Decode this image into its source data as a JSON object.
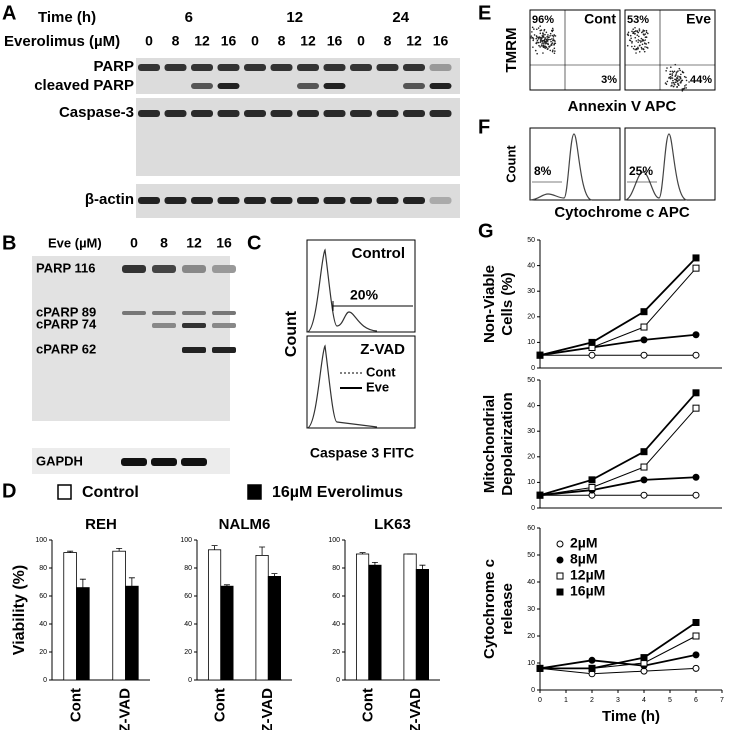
{
  "panels": [
    "A",
    "B",
    "C",
    "D",
    "E",
    "F",
    "G"
  ],
  "blot_a": {
    "time_label": "Time (h)",
    "drug_label": "Everolimus (µM)",
    "times": [
      "6",
      "12",
      "24"
    ],
    "doses": [
      "0",
      "8",
      "12",
      "16",
      "0",
      "8",
      "12",
      "16",
      "0",
      "8",
      "12",
      "16"
    ],
    "bands": [
      "PARP",
      "cleaved PARP",
      "Caspase-3",
      "β-actin"
    ]
  },
  "blot_b": {
    "dose_label": "Eve (µM)",
    "doses": [
      "0",
      "8",
      "12",
      "16"
    ],
    "bands": [
      "PARP 116",
      "cPARP 89",
      "cPARP 74",
      "cPARP 62"
    ],
    "loading": "GAPDH"
  },
  "flow_c": {
    "top": "Control",
    "pct": "20%",
    "bottom": "Z-VAD",
    "legend": [
      "Cont",
      "Eve"
    ],
    "ylabel": "Count",
    "xlabel": "Caspase 3 FITC"
  },
  "flow_e": {
    "ylabel": "TMRM",
    "xlabel": "Annexin V APC",
    "plots": [
      {
        "name": "Cont",
        "upper": "96%",
        "lower": "3%"
      },
      {
        "name": "Eve",
        "upper": "53%",
        "lower": "44%"
      }
    ]
  },
  "flow_f": {
    "ylabel": "Count",
    "xlabel": "Cytochrome c APC",
    "pcts": [
      "8%",
      "25%"
    ]
  },
  "chart_data": [
    {
      "type": "bar",
      "title": "REH",
      "ylabel": "Viability (%)",
      "categories": [
        "Cont",
        "Z-VAD"
      ],
      "ylim": [
        0,
        100
      ],
      "yticks": [
        0,
        20,
        40,
        60,
        80,
        100
      ],
      "series": [
        {
          "name": "Control",
          "color": "#ffffff",
          "values": [
            91,
            92
          ],
          "errors": [
            1,
            2
          ]
        },
        {
          "name": "16µM Everolimus",
          "color": "#000000",
          "values": [
            66,
            67
          ],
          "errors": [
            6,
            6
          ]
        }
      ]
    },
    {
      "type": "bar",
      "title": "NALM6",
      "categories": [
        "Cont",
        "Z-VAD"
      ],
      "ylim": [
        0,
        100
      ],
      "yticks": [
        0,
        20,
        40,
        60,
        80,
        100
      ],
      "series": [
        {
          "color": "#ffffff",
          "values": [
            93,
            89
          ],
          "errors": [
            3,
            6
          ]
        },
        {
          "color": "#000000",
          "values": [
            67,
            74
          ],
          "errors": [
            1,
            2
          ]
        }
      ]
    },
    {
      "type": "bar",
      "title": "LK63",
      "categories": [
        "Cont",
        "Z-VAD"
      ],
      "ylim": [
        0,
        100
      ],
      "yticks": [
        0,
        20,
        40,
        60,
        80,
        100
      ],
      "series": [
        {
          "color": "#ffffff",
          "values": [
            90,
            90
          ],
          "errors": [
            1,
            0
          ]
        },
        {
          "color": "#000000",
          "values": [
            82,
            79
          ],
          "errors": [
            2,
            3
          ]
        }
      ]
    },
    {
      "type": "line",
      "ylabel": [
        "Non-Viable",
        "Cells (%)"
      ],
      "x": [
        0,
        2,
        4,
        6
      ],
      "xlim": [
        0,
        7
      ],
      "ylim": [
        0,
        50
      ],
      "yticks": [
        0,
        10,
        20,
        30,
        40,
        50
      ],
      "series": [
        {
          "color": "#000000",
          "marker": "open-circle",
          "values": [
            5,
            5,
            5,
            5
          ]
        },
        {
          "color": "#000000",
          "marker": "filled-circle",
          "values": [
            5,
            8,
            11,
            13
          ]
        },
        {
          "color": "#000000",
          "marker": "open-square",
          "values": [
            5,
            8,
            16,
            39
          ]
        },
        {
          "color": "#000000",
          "marker": "filled-square",
          "values": [
            5,
            10,
            22,
            43
          ]
        }
      ]
    },
    {
      "type": "line",
      "ylabel": [
        "Mitochondrial",
        "Depolarization"
      ],
      "x": [
        0,
        2,
        4,
        6
      ],
      "xlim": [
        0,
        7
      ],
      "ylim": [
        0,
        50
      ],
      "yticks": [
        0,
        10,
        20,
        30,
        40,
        50
      ],
      "series": [
        {
          "color": "#000000",
          "marker": "open-circle",
          "values": [
            5,
            5,
            5,
            5
          ]
        },
        {
          "color": "#000000",
          "marker": "filled-circle",
          "values": [
            5,
            7,
            11,
            12
          ]
        },
        {
          "color": "#000000",
          "marker": "open-square",
          "values": [
            5,
            8,
            16,
            39
          ]
        },
        {
          "color": "#000000",
          "marker": "filled-square",
          "values": [
            5,
            11,
            22,
            45
          ]
        }
      ]
    },
    {
      "type": "line",
      "ylabel": [
        "Cytochrome c",
        "release"
      ],
      "xlabel": "Time (h)",
      "x": [
        0,
        2,
        4,
        6
      ],
      "xlim": [
        0,
        7
      ],
      "xticks": [
        0,
        1,
        2,
        3,
        4,
        5,
        6,
        7
      ],
      "ylim": [
        0,
        60
      ],
      "yticks": [
        0,
        10,
        20,
        30,
        40,
        50,
        60
      ],
      "series": [
        {
          "name": "2µM",
          "color": "#000000",
          "marker": "open-circle",
          "values": [
            8,
            6,
            7,
            8
          ]
        },
        {
          "name": "8µM",
          "color": "#000000",
          "marker": "filled-circle",
          "values": [
            8,
            11,
            9,
            13
          ]
        },
        {
          "name": "12µM",
          "color": "#000000",
          "marker": "open-square",
          "values": [
            8,
            8,
            10,
            20
          ]
        },
        {
          "name": "16µM",
          "color": "#000000",
          "marker": "filled-square",
          "values": [
            8,
            8,
            12,
            25
          ]
        }
      ]
    }
  ]
}
